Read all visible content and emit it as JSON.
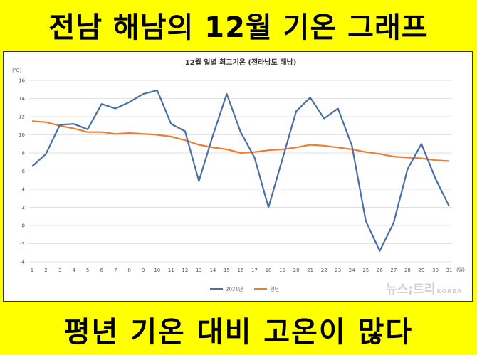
{
  "headline_top": "전남 해남의 12월 기온 그래프",
  "headline_bottom": "평년 기온 대비 고온이 많다",
  "watermark": {
    "brand": "뉴스;트리",
    "sub": "KOREA"
  },
  "chart_data": {
    "type": "line",
    "title": "12월 일별 최고기온 (전라남도 해남)",
    "ylabel": "(℃)",
    "xlabel": "(일)",
    "ylim": [
      -4,
      16
    ],
    "yticks": [
      -4,
      -2,
      0,
      2,
      4,
      6,
      8,
      10,
      12,
      14,
      16
    ],
    "x": [
      1,
      2,
      3,
      4,
      5,
      6,
      7,
      8,
      9,
      10,
      11,
      12,
      13,
      14,
      15,
      16,
      17,
      18,
      19,
      20,
      21,
      22,
      23,
      24,
      25,
      26,
      27,
      28,
      29,
      30,
      31
    ],
    "grid": true,
    "legend_position": "bottom",
    "series": [
      {
        "name": "2021년",
        "color": "#4a6fa5",
        "values": [
          6.5,
          7.9,
          11.1,
          11.2,
          10.6,
          13.4,
          12.9,
          13.6,
          14.5,
          14.9,
          11.2,
          10.4,
          4.9,
          9.9,
          14.5,
          10.3,
          7.5,
          2.0,
          7.3,
          12.6,
          14.1,
          11.8,
          12.9,
          8.8,
          0.5,
          -2.8,
          0.3,
          6.2,
          9.0,
          5.2,
          2.1
        ]
      },
      {
        "name": "평년",
        "color": "#ed7d31",
        "values": [
          11.5,
          11.4,
          11.0,
          10.7,
          10.3,
          10.3,
          10.1,
          10.2,
          10.1,
          10.0,
          9.8,
          9.4,
          8.9,
          8.6,
          8.4,
          8.0,
          8.1,
          8.3,
          8.4,
          8.6,
          8.9,
          8.8,
          8.6,
          8.4,
          8.1,
          7.9,
          7.6,
          7.5,
          7.4,
          7.2,
          7.1
        ]
      }
    ]
  }
}
